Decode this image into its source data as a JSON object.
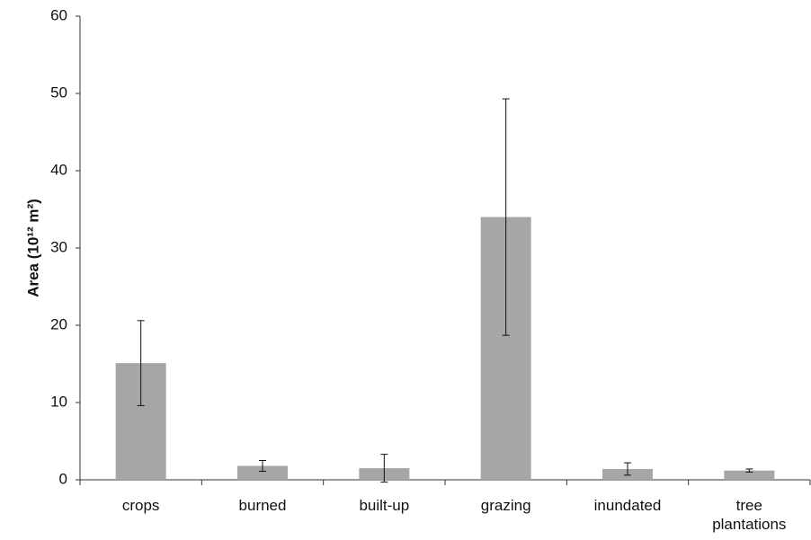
{
  "chart_data": {
    "type": "bar",
    "y_label": "Area (10¹² m²)",
    "categories": [
      "crops",
      "burned",
      "built-up",
      "grazing",
      "inundated",
      "tree plantations"
    ],
    "values": [
      15.1,
      1.8,
      1.5,
      34,
      1.4,
      1.2
    ],
    "errors": [
      5.5,
      0.7,
      1.8,
      15.3,
      0.8,
      0.2
    ],
    "color": "#a6a6a6",
    "ylim": [
      0,
      60
    ],
    "yticks": [
      0,
      10,
      20,
      30,
      40,
      50,
      60
    ],
    "grid": false
  }
}
